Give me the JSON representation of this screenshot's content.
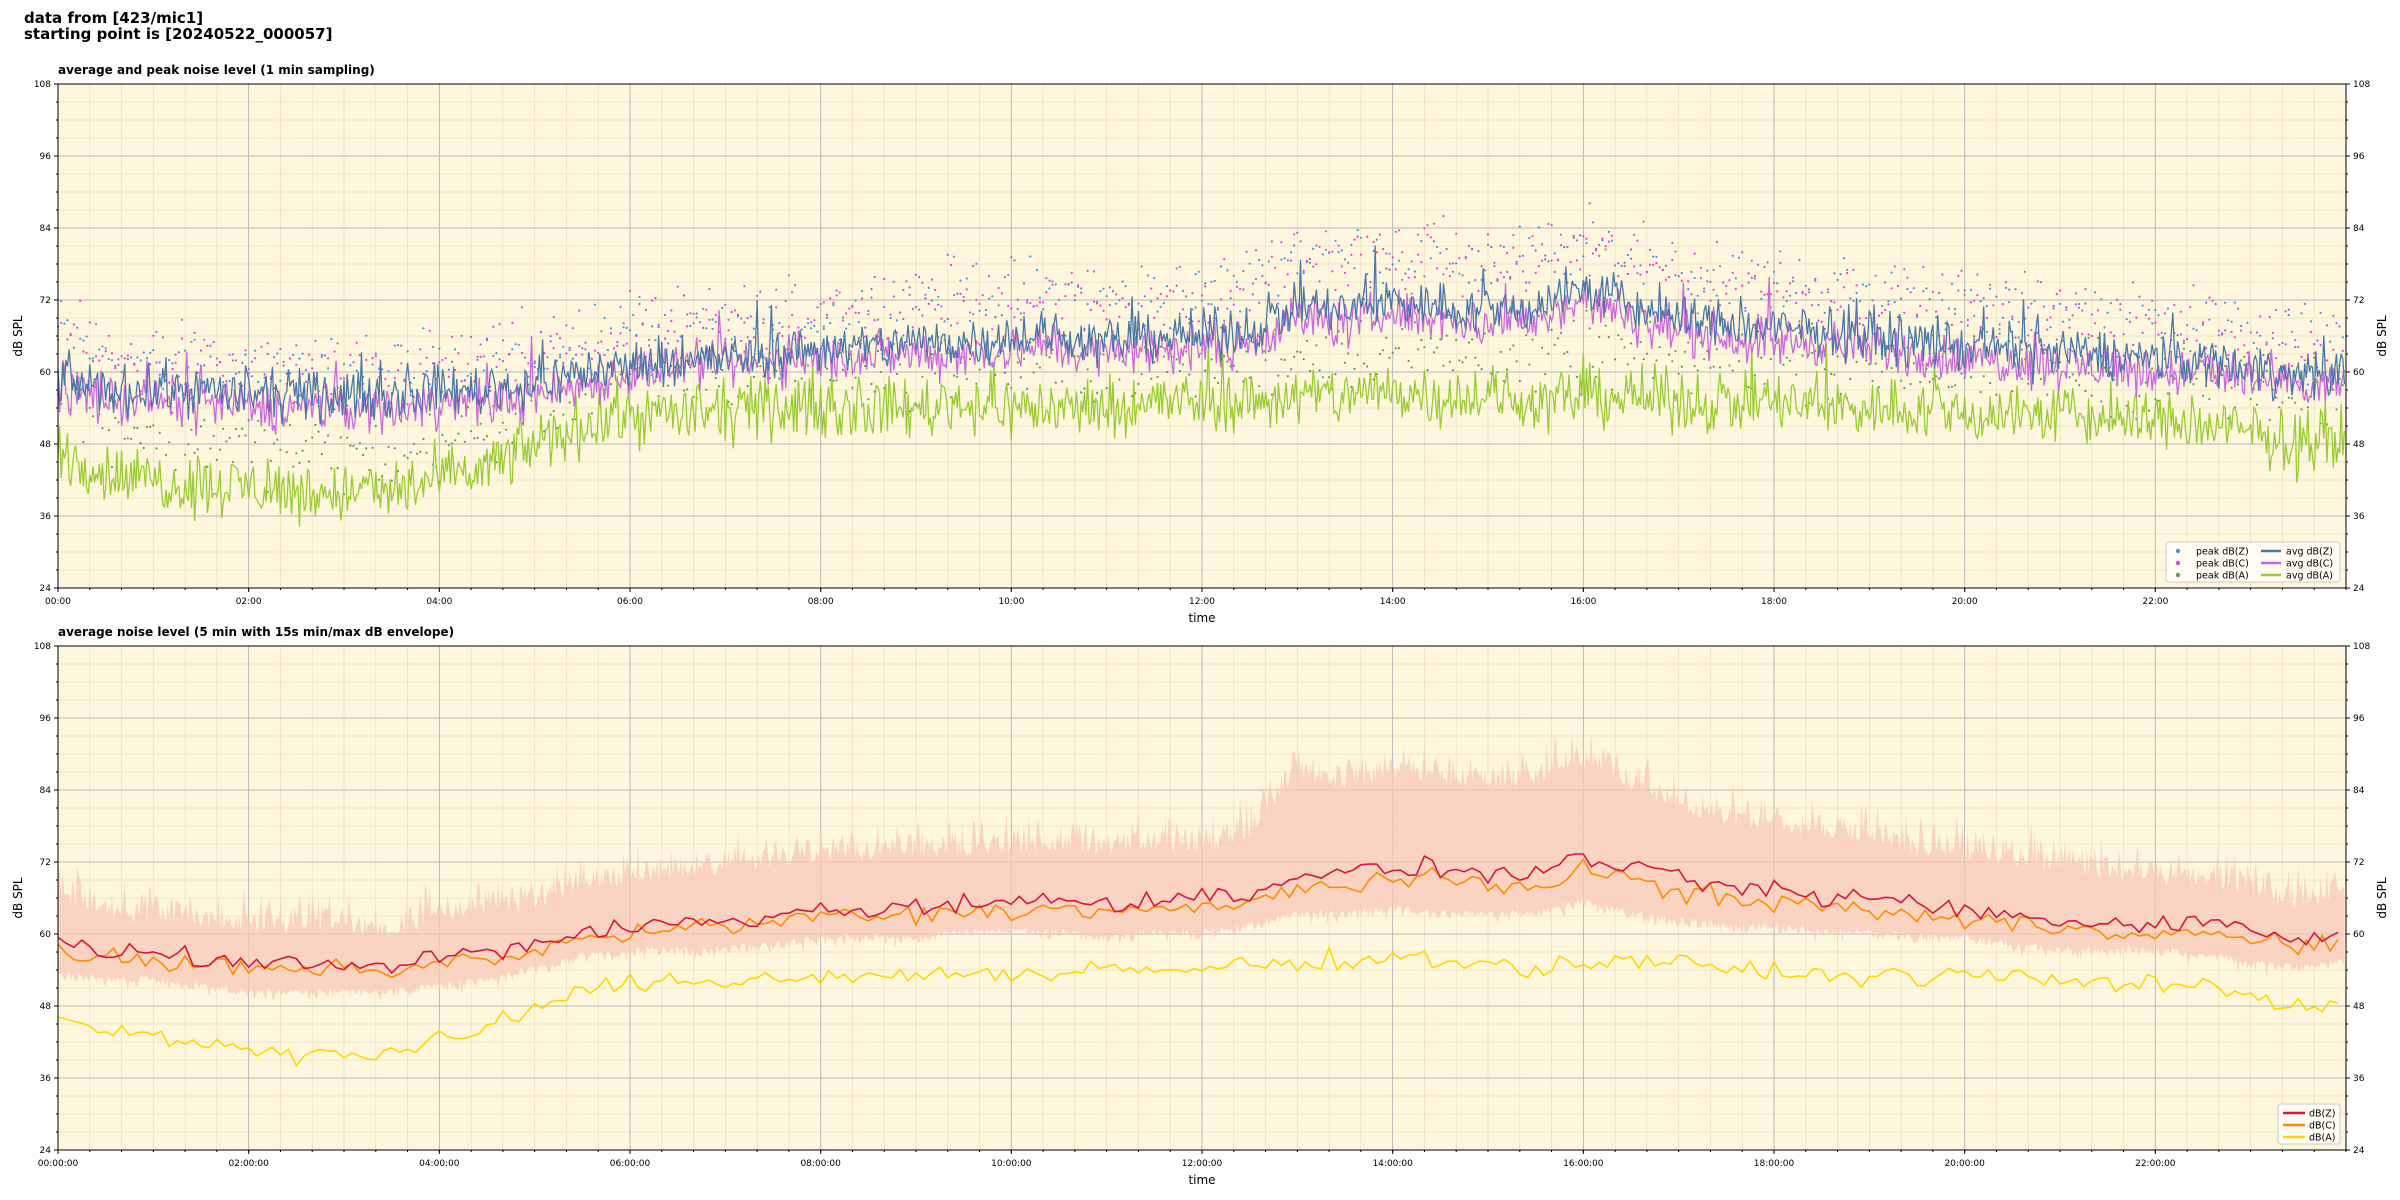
{
  "header": {
    "line1": "data from [423/mic1]",
    "line2": "starting point is [20240522_000057]"
  },
  "colors": {
    "background": "#fef7de",
    "grid_major": "#b8b8b8",
    "grid_minor": "#eadfb8",
    "avg_z": "#4a78a8",
    "avg_c": "#cc66dd",
    "avg_a": "#99cc33",
    "peak_z": "#4a90e2",
    "peak_c": "#e040e0",
    "peak_a": "#5a9a5a",
    "env_z": "#dc143c",
    "env_c": "#ff8c00",
    "env_a": "#ffd700",
    "envelope_fill": "#f8c8b8"
  },
  "chart_data": [
    {
      "type": "line",
      "title": "average and peak noise level (1 min sampling)",
      "xlabel": "time",
      "ylabel": "dB SPL",
      "xlim": [
        0,
        24
      ],
      "ylim": [
        24,
        108
      ],
      "yticks": [
        24,
        36,
        48,
        60,
        72,
        84,
        96,
        108
      ],
      "xtick_labels": [
        "00:00",
        "02:00",
        "04:00",
        "06:00",
        "08:00",
        "10:00",
        "12:00",
        "14:00",
        "16:00",
        "18:00",
        "20:00",
        "22:00"
      ],
      "legend_position": "bottom-right",
      "grid": true,
      "x_hours": [
        0,
        0.5,
        1,
        1.5,
        2,
        2.5,
        3,
        3.5,
        4,
        4.5,
        5,
        5.5,
        6,
        6.5,
        7,
        7.5,
        8,
        8.5,
        9,
        9.5,
        10,
        10.5,
        11,
        11.5,
        12,
        12.5,
        13,
        13.5,
        14,
        14.5,
        15,
        15.5,
        16,
        16.5,
        17,
        17.5,
        18,
        18.5,
        19,
        19.5,
        20,
        20.5,
        21,
        21.5,
        22,
        22.5,
        23,
        23.5,
        24
      ],
      "series": [
        {
          "name": "peak dB(Z)",
          "kind": "scatter",
          "values": [
            67,
            63,
            62,
            62,
            61,
            60,
            60,
            59,
            62,
            62,
            63,
            65,
            67,
            67,
            68,
            69,
            70,
            71,
            72,
            73,
            73,
            73,
            72,
            73,
            72,
            75,
            80,
            79,
            80,
            79,
            78,
            79,
            81,
            79,
            77,
            75,
            75,
            74,
            73,
            72,
            71,
            70,
            70,
            69,
            68,
            68,
            66,
            65,
            66
          ]
        },
        {
          "name": "peak dB(C)",
          "kind": "scatter",
          "values": [
            66,
            62,
            61,
            61,
            60,
            59,
            59,
            58,
            61,
            61,
            62,
            64,
            66,
            66,
            67,
            68,
            69,
            70,
            71,
            72,
            72,
            72,
            71,
            72,
            71,
            74,
            79,
            78,
            79,
            78,
            77,
            78,
            80,
            78,
            76,
            74,
            74,
            73,
            72,
            71,
            70,
            69,
            69,
            68,
            67,
            67,
            65,
            64,
            65
          ]
        },
        {
          "name": "peak dB(A)",
          "kind": "scatter",
          "values": [
            57,
            52,
            50,
            49,
            48,
            47,
            46,
            46,
            48,
            50,
            54,
            57,
            59,
            59,
            60,
            60,
            61,
            61,
            61,
            62,
            61,
            61,
            61,
            61,
            62,
            62,
            63,
            63,
            64,
            63,
            63,
            62,
            63,
            63,
            62,
            62,
            62,
            61,
            61,
            61,
            60,
            60,
            60,
            59,
            59,
            58,
            57,
            55,
            56
          ]
        },
        {
          "name": "avg dB(Z)",
          "kind": "line",
          "values": [
            59,
            57,
            57,
            57,
            56,
            56,
            56,
            56,
            57,
            57,
            58,
            60,
            61,
            62,
            62,
            63,
            64,
            64,
            65,
            65,
            66,
            66,
            65,
            66,
            66,
            67,
            71,
            70,
            72,
            71,
            70,
            71,
            74,
            71,
            69,
            68,
            67,
            67,
            66,
            65,
            64,
            64,
            63,
            63,
            62,
            62,
            61,
            59,
            60
          ]
        },
        {
          "name": "avg dB(C)",
          "kind": "line",
          "values": [
            58,
            55,
            55,
            55,
            54,
            54,
            54,
            54,
            55,
            55,
            56,
            58,
            60,
            61,
            61,
            62,
            62,
            63,
            63,
            63,
            64,
            64,
            63,
            64,
            64,
            65,
            69,
            68,
            70,
            69,
            68,
            69,
            72,
            69,
            67,
            66,
            65,
            65,
            64,
            63,
            62,
            62,
            61,
            61,
            60,
            60,
            59,
            57,
            58
          ]
        },
        {
          "name": "avg dB(A)",
          "kind": "line",
          "values": [
            47,
            43,
            42,
            41,
            41,
            40,
            40,
            40,
            42,
            44,
            48,
            51,
            53,
            53,
            53,
            54,
            54,
            54,
            54,
            55,
            54,
            54,
            54,
            55,
            55,
            55,
            56,
            56,
            57,
            56,
            56,
            55,
            56,
            56,
            55,
            55,
            55,
            54,
            54,
            54,
            53,
            53,
            53,
            52,
            52,
            51,
            50,
            48,
            49
          ]
        }
      ]
    },
    {
      "type": "line",
      "title": "average noise level (5 min with 15s min/max dB envelope)",
      "xlabel": "time",
      "ylabel": "dB SPL",
      "xlim": [
        0,
        24
      ],
      "ylim": [
        24,
        108
      ],
      "yticks": [
        24,
        36,
        48,
        60,
        72,
        84,
        96,
        108
      ],
      "xtick_labels": [
        "00:00:00",
        "02:00:00",
        "04:00:00",
        "06:00:00",
        "08:00:00",
        "10:00:00",
        "12:00:00",
        "14:00:00",
        "16:00:00",
        "18:00:00",
        "20:00:00",
        "22:00:00"
      ],
      "legend_position": "bottom-right",
      "grid": true,
      "x_hours": [
        0,
        0.5,
        1,
        1.5,
        2,
        2.5,
        3,
        3.5,
        4,
        4.5,
        5,
        5.5,
        6,
        6.5,
        7,
        7.5,
        8,
        8.5,
        9,
        9.5,
        10,
        10.5,
        11,
        11.5,
        12,
        12.5,
        13,
        13.5,
        14,
        14.5,
        15,
        15.5,
        16,
        16.5,
        17,
        17.5,
        18,
        18.5,
        19,
        19.5,
        20,
        20.5,
        21,
        21.5,
        22,
        22.5,
        23,
        23.5,
        24
      ],
      "series": [
        {
          "name": "dB(Z)",
          "values": [
            58,
            57,
            57,
            56,
            55,
            55,
            55,
            55,
            56,
            57,
            58,
            60,
            61,
            62,
            62,
            63,
            64,
            64,
            65,
            65,
            65,
            66,
            65,
            66,
            66,
            67,
            70,
            70,
            71,
            71,
            70,
            70,
            73,
            71,
            69,
            68,
            67,
            66,
            66,
            65,
            64,
            63,
            62,
            62,
            62,
            62,
            61,
            59,
            60
          ]
        },
        {
          "name": "dB(C)",
          "values": [
            57,
            56,
            55,
            55,
            54,
            54,
            54,
            54,
            55,
            56,
            57,
            59,
            60,
            61,
            61,
            62,
            63,
            63,
            63,
            64,
            64,
            64,
            64,
            64,
            64,
            65,
            68,
            68,
            69,
            69,
            68,
            68,
            71,
            69,
            67,
            66,
            65,
            65,
            64,
            63,
            62,
            62,
            61,
            61,
            60,
            60,
            59,
            58,
            59
          ]
        },
        {
          "name": "dB(A)",
          "values": [
            46,
            44,
            43,
            42,
            41,
            40,
            40,
            40,
            42,
            44,
            48,
            50,
            52,
            52,
            52,
            53,
            53,
            53,
            53,
            54,
            53,
            53,
            54,
            54,
            54,
            55,
            55,
            56,
            56,
            56,
            55,
            54,
            55,
            56,
            55,
            54,
            54,
            53,
            53,
            53,
            53,
            53,
            52,
            52,
            52,
            51,
            50,
            48,
            49
          ]
        }
      ],
      "envelope": {
        "lower": [
          54,
          53,
          53,
          52,
          51,
          51,
          51,
          51,
          52,
          53,
          55,
          57,
          58,
          58,
          58,
          59,
          60,
          60,
          60,
          61,
          61,
          61,
          60,
          61,
          61,
          62,
          64,
          64,
          65,
          64,
          64,
          64,
          66,
          64,
          63,
          62,
          62,
          61,
          61,
          60,
          60,
          59,
          58,
          58,
          58,
          57,
          56,
          55,
          56
        ],
        "upper": [
          66,
          62,
          62,
          61,
          60,
          60,
          60,
          59,
          62,
          63,
          64,
          67,
          68,
          69,
          70,
          71,
          72,
          72,
          73,
          73,
          73,
          74,
          73,
          74,
          73,
          76,
          86,
          84,
          86,
          85,
          84,
          85,
          88,
          84,
          80,
          78,
          77,
          76,
          75,
          73,
          72,
          71,
          70,
          69,
          68,
          68,
          66,
          64,
          66
        ]
      }
    }
  ]
}
